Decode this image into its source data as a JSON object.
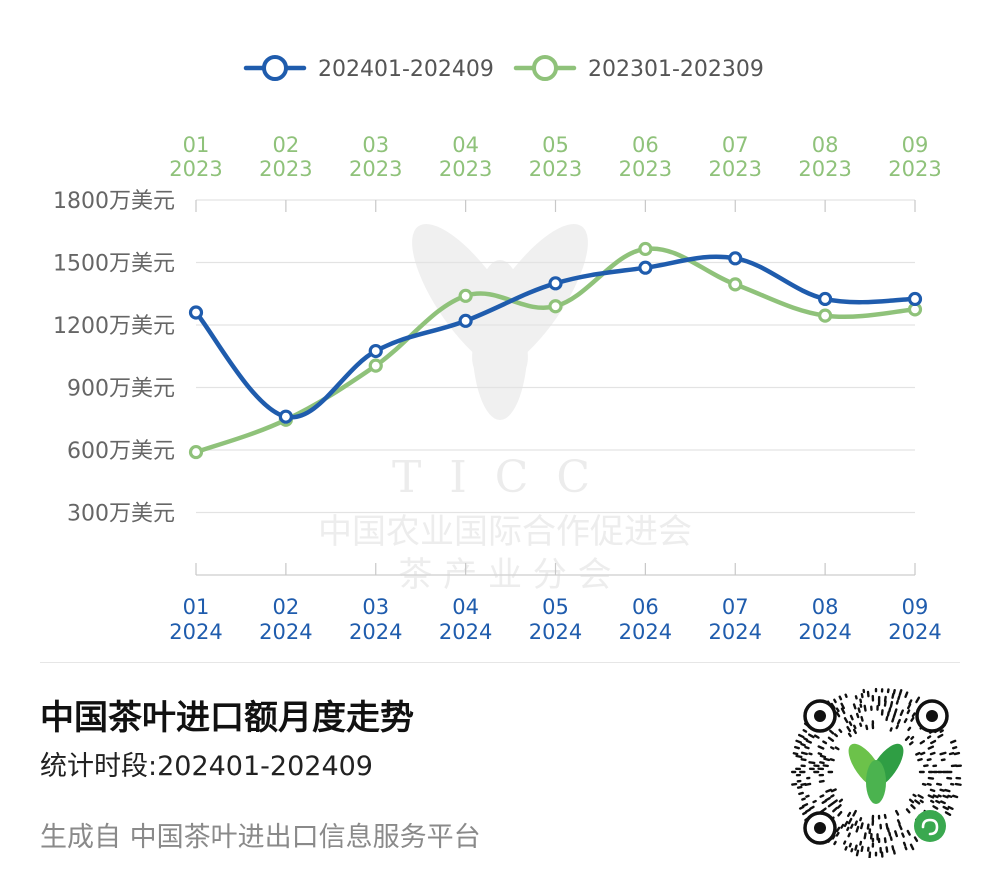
{
  "chart_data": {
    "type": "line",
    "title": "中国茶叶进口额月度走势",
    "y_tick_labels": [
      "1800万美元",
      "1500万美元",
      "1200万美元",
      "900万美元",
      "600万美元",
      "300万美元"
    ],
    "y_tick_values": [
      1800,
      1500,
      1200,
      900,
      600,
      300
    ],
    "ylim": [
      0,
      1800
    ],
    "grid": true,
    "legend_position": "top-center",
    "series": [
      {
        "name": "202401-202409",
        "color": "#1f5cad",
        "x_labels_top": [
          "01",
          "02",
          "03",
          "04",
          "05",
          "06",
          "07",
          "08",
          "09"
        ],
        "x_labels_bottom": [
          "2024",
          "2024",
          "2024",
          "2024",
          "2024",
          "2024",
          "2024",
          "2024",
          "2024"
        ],
        "values": [
          1260,
          760,
          1075,
          1220,
          1400,
          1475,
          1520,
          1325,
          1325
        ]
      },
      {
        "name": "202301-202309",
        "color": "#8fc27a",
        "x_labels_top": [
          "01",
          "02",
          "03",
          "04",
          "05",
          "06",
          "07",
          "08",
          "09"
        ],
        "x_labels_bottom": [
          "2023",
          "2023",
          "2023",
          "2023",
          "2023",
          "2023",
          "2023",
          "2023",
          "2023"
        ],
        "values": [
          590,
          745,
          1005,
          1340,
          1290,
          1565,
          1395,
          1245,
          1275
        ]
      }
    ]
  },
  "watermark": {
    "text1": "TICC",
    "text2": "中国农业国际合作促进会",
    "text3": "茶 产 业 分 会"
  },
  "footer": {
    "title": "中国茶叶进口额月度走势",
    "period": "统计时段:202401-202409",
    "source": "生成自 中国茶叶进出口信息服务平台"
  },
  "qr": {
    "icon": "qr-code-miniprogram-icon",
    "accent": "#3aa84f"
  }
}
